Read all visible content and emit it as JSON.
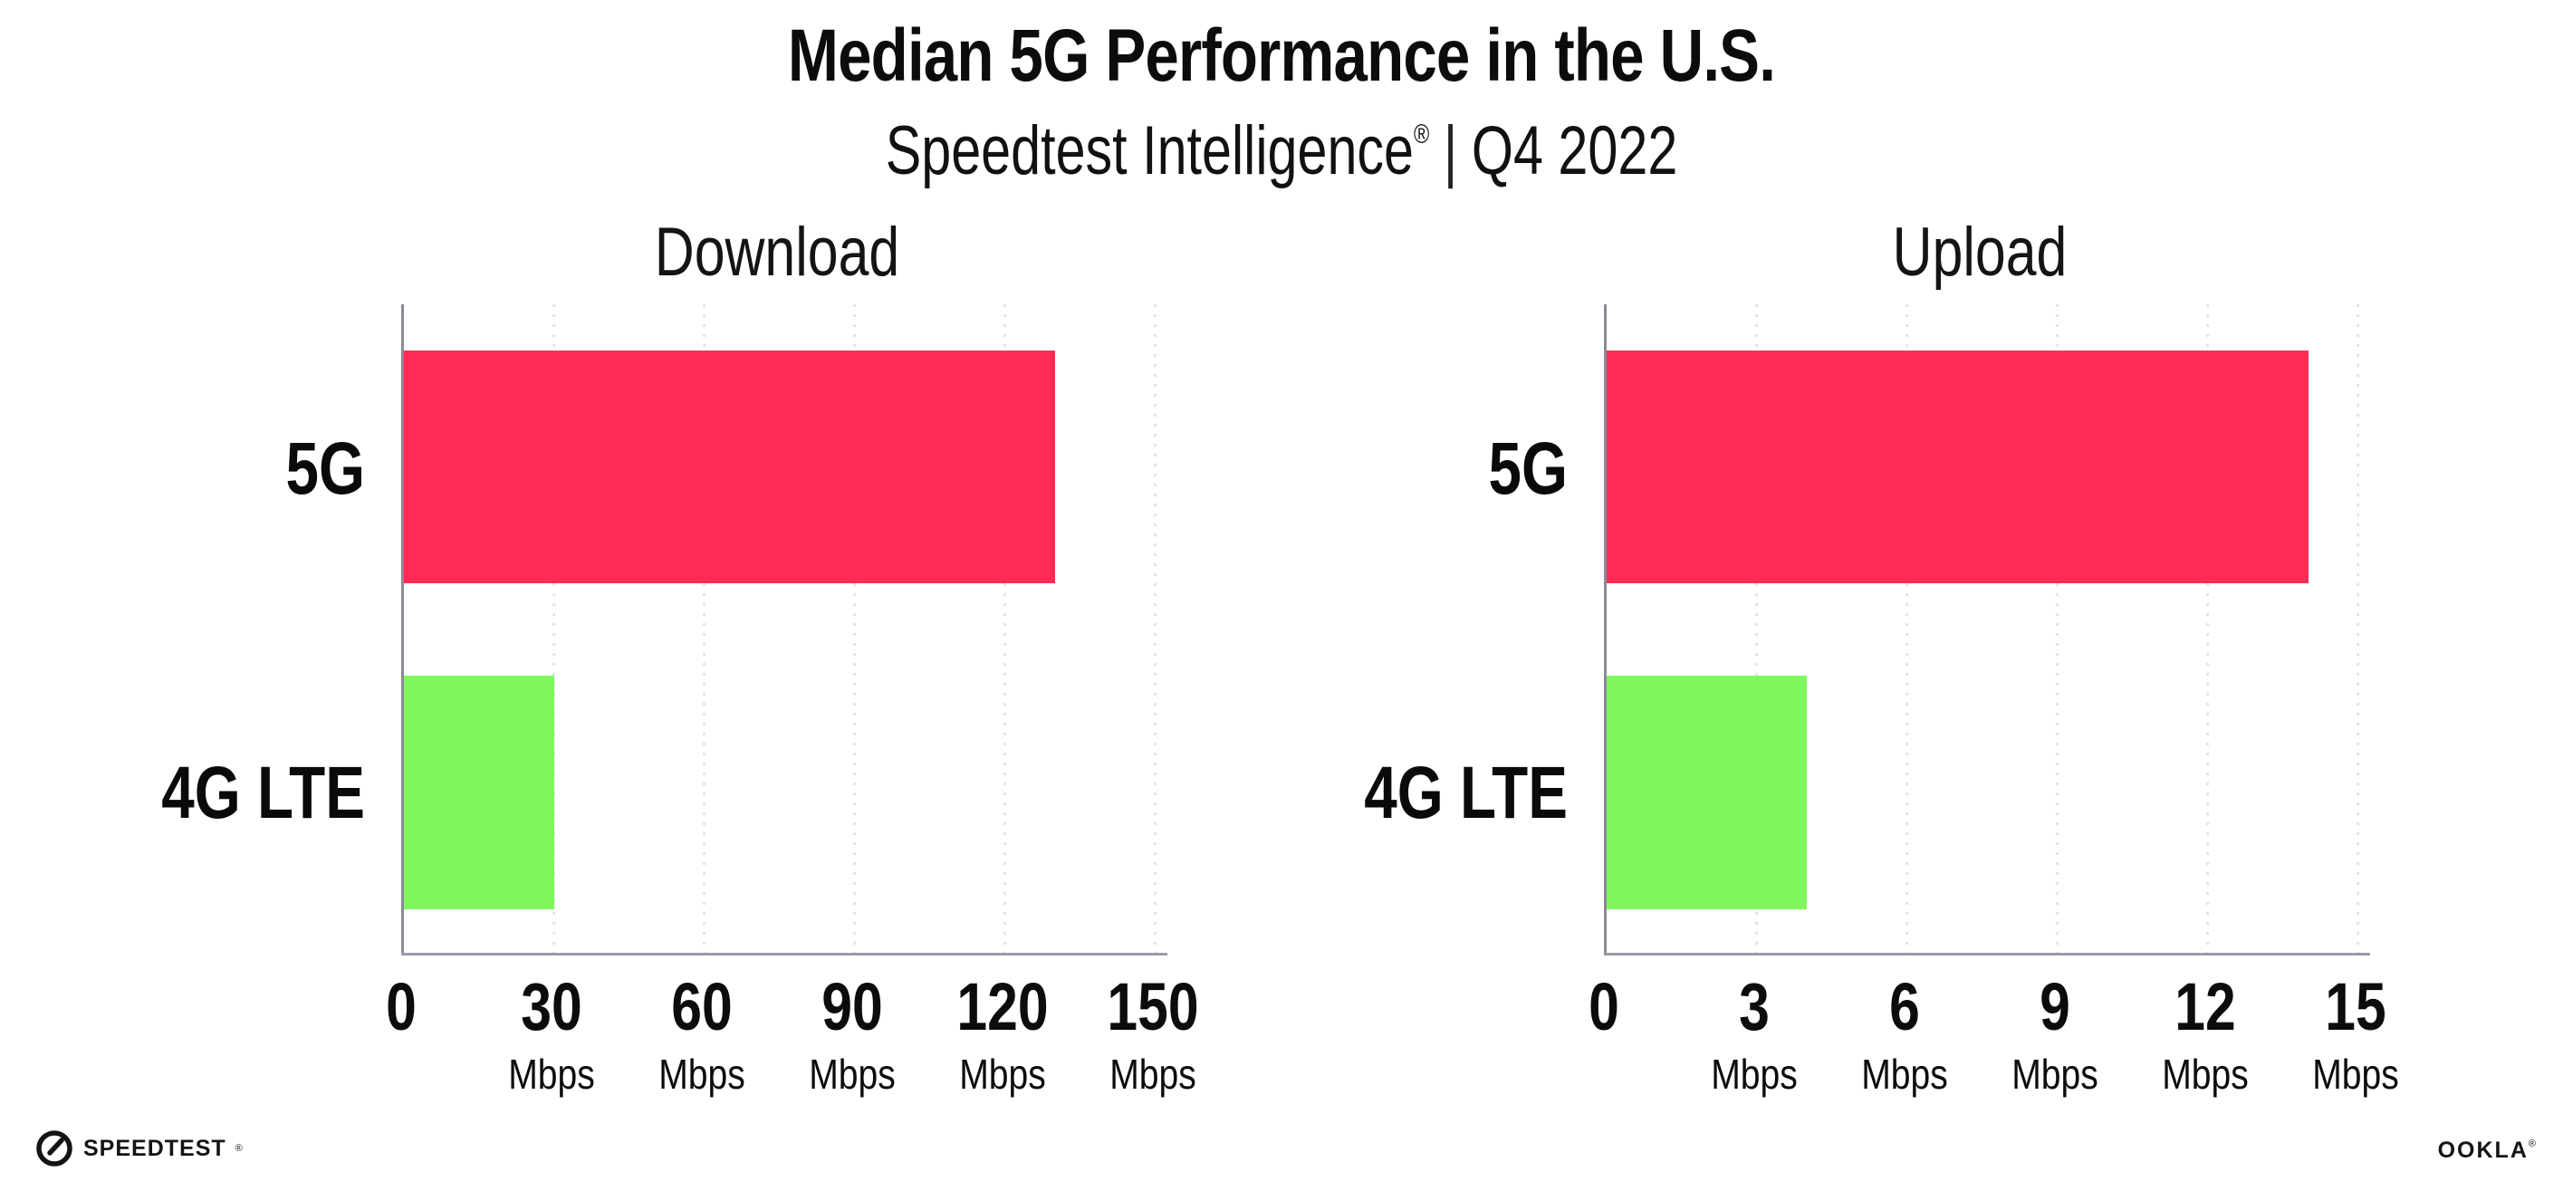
{
  "header": {
    "title": "Median 5G Performance in the U.S.",
    "subtitle_brand": "Speedtest Intelligence",
    "subtitle_registered": "®",
    "subtitle_separator": "|",
    "subtitle_period": "Q4 2022"
  },
  "chart_data": [
    {
      "type": "bar",
      "orientation": "horizontal",
      "title": "Download",
      "categories": [
        "5G",
        "4G LTE"
      ],
      "values": [
        130,
        30
      ],
      "unit": "Mbps",
      "xlim": [
        0,
        150
      ],
      "ticks": [
        0,
        30,
        60,
        90,
        120,
        150
      ],
      "tick_unit": "Mbps",
      "bar_colors": [
        "#FF2D55",
        "#80F75F"
      ],
      "grid": "dotted vertical gridlines at ticks",
      "legend": "none"
    },
    {
      "type": "bar",
      "orientation": "horizontal",
      "title": "Upload",
      "categories": [
        "5G",
        "4G LTE"
      ],
      "values": [
        14,
        4
      ],
      "unit": "Mbps",
      "xlim": [
        0,
        15
      ],
      "ticks": [
        0,
        3,
        6,
        9,
        12,
        15
      ],
      "tick_unit": "Mbps",
      "bar_colors": [
        "#FF2D55",
        "#80F75F"
      ],
      "grid": "dotted vertical gridlines at ticks",
      "legend": "none"
    }
  ],
  "footer": {
    "speedtest_label": "SPEEDTEST",
    "speedtest_mark": "®",
    "ookla_label": "OOKLA",
    "ookla_mark": "®"
  },
  "colors": {
    "bar_5g": "#FF2D55",
    "bar_4g": "#80F75F",
    "axis": "#9B9BA4",
    "gridline": "#E3E3EE",
    "text": "#0C0C0C",
    "background": "#FFFFFF"
  }
}
